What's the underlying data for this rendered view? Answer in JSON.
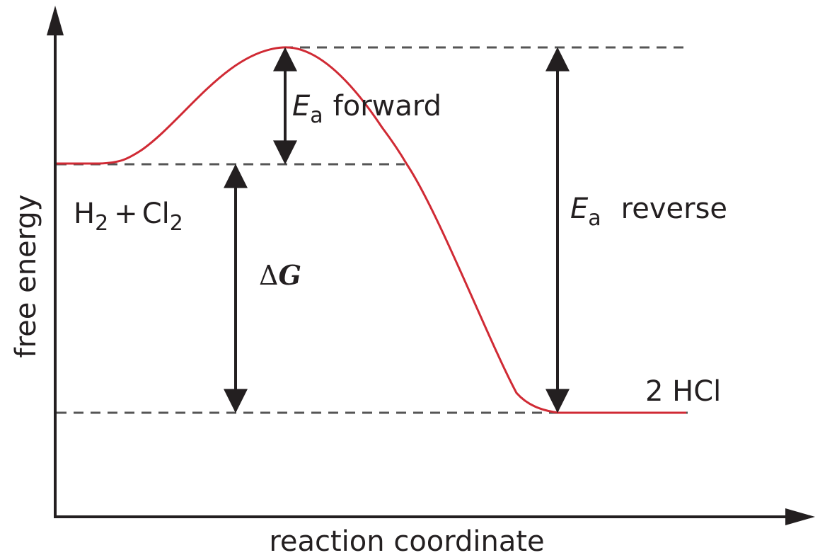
{
  "axes": {
    "y_label": "free energy",
    "x_label": "reaction coordinate"
  },
  "reactants": {
    "h": "H",
    "h_sub": "2",
    "plus": "+",
    "cl": "Cl",
    "cl_sub": "2"
  },
  "products": "2 HCl",
  "delta_g": {
    "delta": "Δ",
    "g": "G"
  },
  "ea_forward": {
    "symbol": "E",
    "subscript": "a",
    "text": "forward"
  },
  "ea_reverse": {
    "symbol": "E",
    "subscript": "a",
    "text": "reverse"
  }
}
